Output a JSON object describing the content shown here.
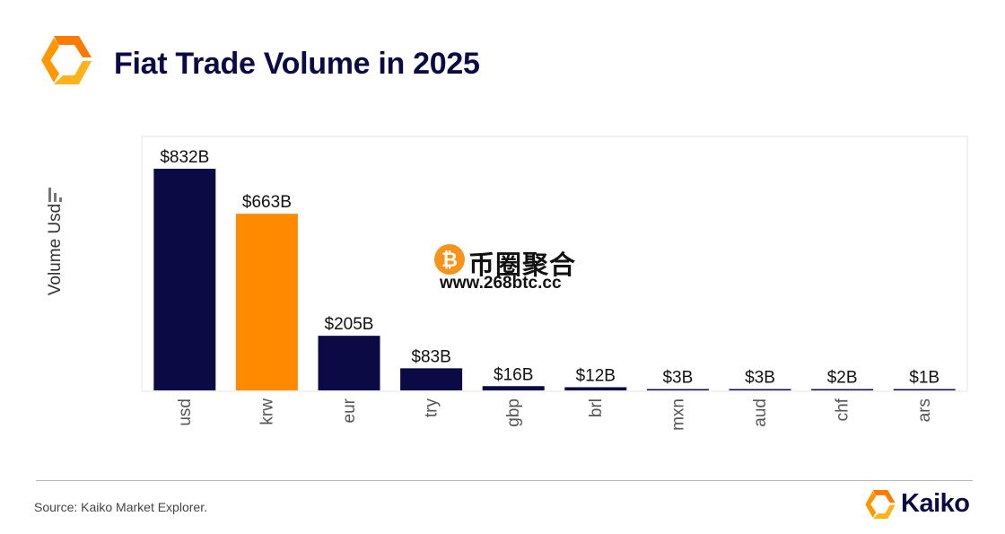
{
  "header": {
    "title": "Fiat Trade Volume in 2025"
  },
  "footer": {
    "source": "Source: Kaiko Market Explorer.",
    "brand": "Kaiko"
  },
  "watermark": {
    "text": "币圈聚合",
    "url": "www.268btc.cc"
  },
  "colors": {
    "navy": "#0c0a45",
    "highlight": "#ff8a00",
    "accent": "#f39a1d"
  },
  "icons": {
    "brand_logo": "kaiko-logo-icon",
    "axis_icon": "bar-chart-icon",
    "watermark_icon": "bitcoin-icon"
  },
  "chart_data": {
    "type": "bar",
    "title": "Fiat Trade Volume in 2025",
    "xlabel": "",
    "ylabel": "Volume Usd",
    "categories": [
      "usd",
      "krw",
      "eur",
      "try",
      "gbp",
      "brl",
      "mxn",
      "aud",
      "chf",
      "ars"
    ],
    "series": [
      {
        "values": [
          832,
          663,
          205,
          83,
          16,
          12,
          3,
          3,
          2,
          1
        ]
      }
    ],
    "data_labels": [
      "$832B",
      "$663B",
      "$205B",
      "$83B",
      "$16B",
      "$12B",
      "$3B",
      "$3B",
      "$2B",
      "$1B"
    ],
    "highlight_category": "krw",
    "bar_colors": [
      "#0c0a45",
      "#ff8a00",
      "#0c0a45",
      "#0c0a45",
      "#0c0a45",
      "#0c0a45",
      "#0c0a45",
      "#0c0a45",
      "#0c0a45",
      "#0c0a45"
    ],
    "grid": false,
    "legend": "none",
    "ylim": [
      0,
      832
    ]
  }
}
